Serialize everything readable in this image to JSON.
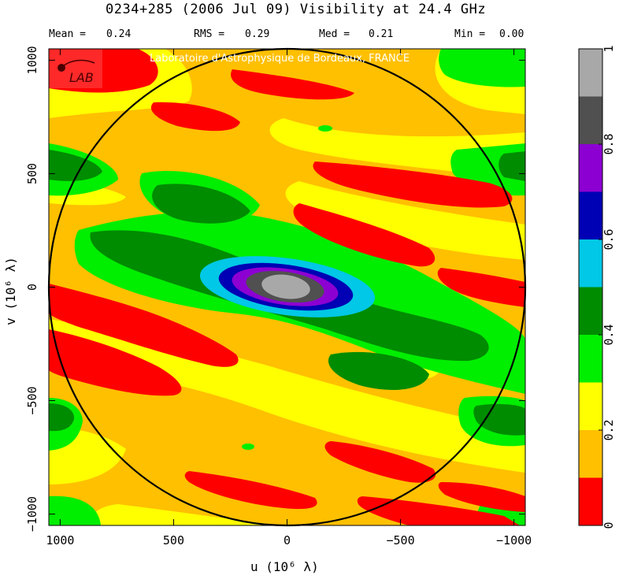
{
  "header": {
    "title": "0234+285  (2006 Jul 09)   Visibility at 24.4 GHz",
    "stats": [
      {
        "label": "Mean =",
        "value": "0.24"
      },
      {
        "label": "RMS =",
        "value": "0.29"
      },
      {
        "label": "Med =",
        "value": "0.21"
      },
      {
        "label": "Min =",
        "value": "0.00"
      }
    ]
  },
  "banner": "Laboratoire d'Astrophysique de Bordeaux, FRANCE",
  "logo_text": "LAB",
  "chart_data": {
    "type": "heatmap",
    "title": "0234+285  (2006 Jul 09)   Visibility at 24.4 GHz",
    "xlabel": "u  (10⁶ λ)",
    "ylabel": "v  (10⁶ λ)",
    "xlim": [
      1050,
      -1050
    ],
    "ylim": [
      -1050,
      1050
    ],
    "x_ticks": [
      "1000",
      "500",
      "0",
      "−500",
      "−1000"
    ],
    "x_tick_values": [
      1000,
      500,
      0,
      -500,
      -1000
    ],
    "y_ticks": [
      "−1000",
      "−500",
      "0",
      "500",
      "1000"
    ],
    "y_tick_values": [
      -1000,
      -500,
      0,
      500,
      1000
    ],
    "circle_radius": 1050,
    "colorbar": {
      "range": [
        0,
        1
      ],
      "tick_labels": [
        "0",
        "0.2",
        "0.4",
        "0.6",
        "0.8",
        "1"
      ],
      "tick_values": [
        0,
        0.2,
        0.4,
        0.6,
        0.8,
        1
      ],
      "levels": [
        {
          "min": 0.0,
          "max": 0.1,
          "color": "#ff0000"
        },
        {
          "min": 0.1,
          "max": 0.2,
          "color": "#ffc000"
        },
        {
          "min": 0.2,
          "max": 0.3,
          "color": "#ffff00"
        },
        {
          "min": 0.3,
          "max": 0.4,
          "color": "#00ee00"
        },
        {
          "min": 0.4,
          "max": 0.5,
          "color": "#008c00"
        },
        {
          "min": 0.5,
          "max": 0.6,
          "color": "#00c8e6"
        },
        {
          "min": 0.6,
          "max": 0.7,
          "color": "#0000b4"
        },
        {
          "min": 0.7,
          "max": 0.8,
          "color": "#8c00d2"
        },
        {
          "min": 0.8,
          "max": 0.9,
          "color": "#505050"
        },
        {
          "min": 0.9,
          "max": 1.0,
          "color": "#a8a8a8"
        }
      ]
    }
  }
}
